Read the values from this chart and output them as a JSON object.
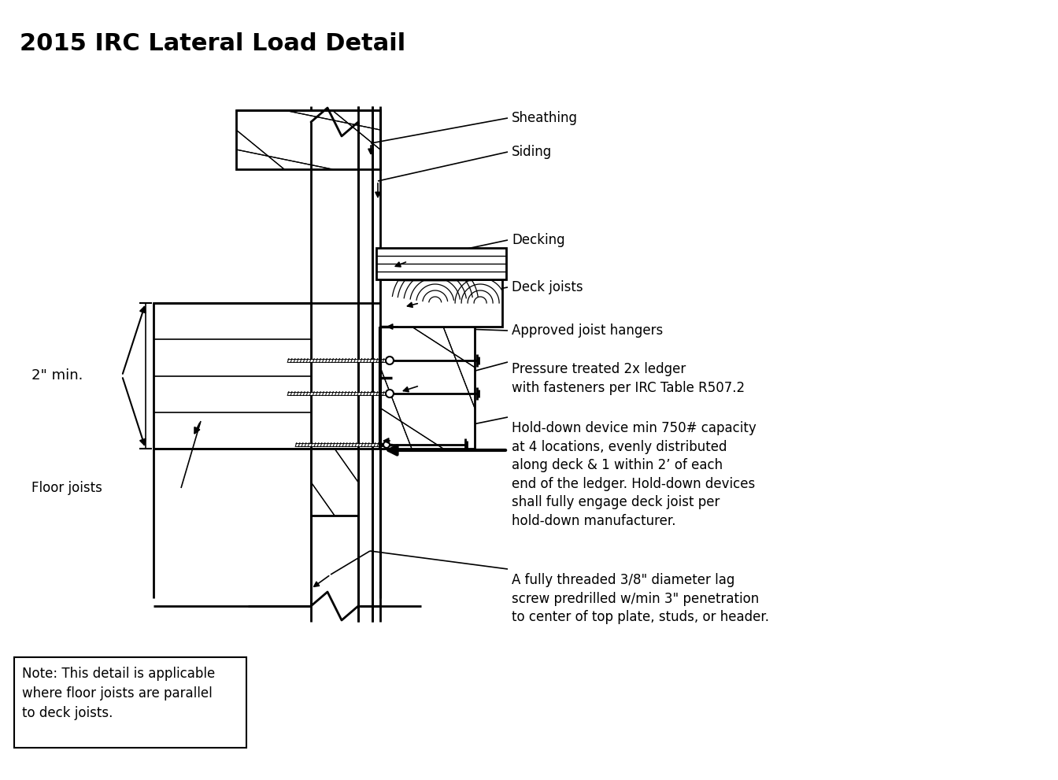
{
  "title": "2015 IRC Lateral Load Detail",
  "title_fontsize": 22,
  "title_fontweight": "bold",
  "background_color": "#ffffff",
  "line_color": "#000000",
  "labels": {
    "sheathing": "Sheathing",
    "siding": "Siding",
    "decking": "Decking",
    "deck_joists": "Deck joists",
    "approved_joist_hangers": "Approved joist hangers",
    "pressure_treated": "Pressure treated 2x ledger\nwith fasteners per IRC Table R507.2",
    "hold_down": "Hold-down device min 750# capacity\nat 4 locations, evenly distributed\nalong deck & 1 within 2’ of each\nend of the ledger. Hold-down devices\nshall fully engage deck joist per\nhold-down manufacturer.",
    "lag_screw": "A fully threaded 3/8\" diameter lag\nscrew predrilled w/min 3\" penetration\nto center of top plate, studs, or header.",
    "floor_joists": "Floor joists",
    "two_inch_min": "2\" min.",
    "note": "Note: This detail is applicable\nwhere floor joists are parallel\nto deck joists."
  },
  "text_fontsize": 12,
  "note_fontsize": 12
}
